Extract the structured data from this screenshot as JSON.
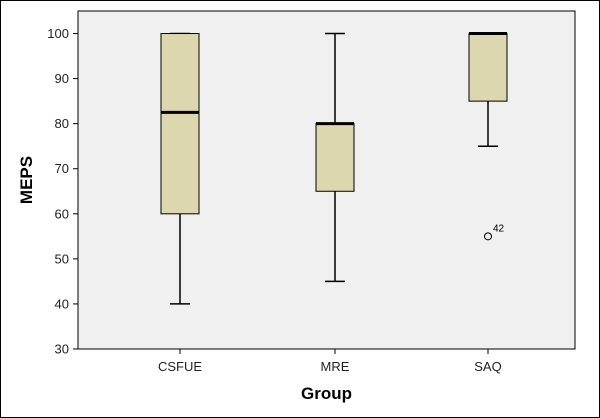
{
  "chart_data": {
    "type": "box",
    "xlabel": "Group",
    "ylabel": "MEPS",
    "ylim": [
      30,
      105
    ],
    "yticks": [
      30,
      40,
      50,
      60,
      70,
      80,
      90,
      100
    ],
    "categories": [
      "CSFUE",
      "MRE",
      "SAQ"
    ],
    "boxes": [
      {
        "category": "CSFUE",
        "min": 40,
        "q1": 60,
        "median": 82.5,
        "q3": 100,
        "max": 100,
        "outliers": []
      },
      {
        "category": "MRE",
        "min": 45,
        "q1": 65,
        "median": 80,
        "q3": 80,
        "max": 100,
        "outliers": []
      },
      {
        "category": "SAQ",
        "min": 75,
        "q1": 85,
        "median": 100,
        "q3": 100,
        "max": 100,
        "outliers": [
          {
            "value": 55,
            "label": "42"
          }
        ]
      }
    ],
    "grid": false,
    "colors": {
      "box_fill": "#dcd7ae",
      "plot_bg": "#f0f0f0",
      "line": "#000000"
    }
  }
}
